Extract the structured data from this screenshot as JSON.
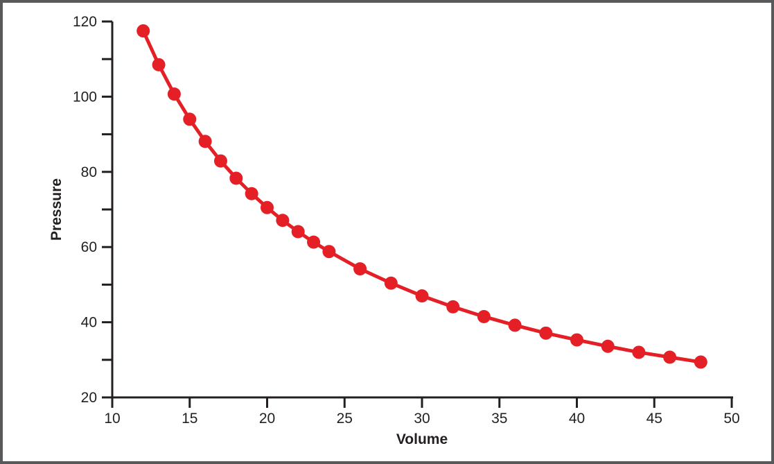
{
  "figure": {
    "background_color": "#ffffff",
    "frame_color": "#58595b",
    "axis_color": "#231f20",
    "text_color": "#231f20"
  },
  "chart_data": {
    "type": "line",
    "title": "",
    "xlabel": "Volume",
    "ylabel": "Pressure",
    "xlim": [
      10,
      50
    ],
    "ylim": [
      20,
      120
    ],
    "x_ticks": [
      10,
      15,
      20,
      25,
      30,
      35,
      40,
      45,
      50
    ],
    "y_major_ticks": [
      20,
      40,
      60,
      80,
      100,
      120
    ],
    "y_minor_ticks": [
      30,
      50,
      70,
      90,
      110
    ],
    "grid": false,
    "legend": "none",
    "line_color": "#e41f26",
    "marker": "filled-circle",
    "series": [
      {
        "name": "pressure-vs-volume",
        "x": [
          12,
          13,
          14,
          15,
          16,
          17,
          18,
          19,
          20,
          21,
          22,
          23,
          24,
          26,
          28,
          30,
          32,
          34,
          36,
          38,
          40,
          42,
          44,
          46,
          48
        ],
        "y": [
          117.5,
          108.5,
          100.7,
          94.0,
          88.1,
          82.9,
          78.3,
          74.2,
          70.5,
          67.1,
          64.1,
          61.3,
          58.8,
          54.2,
          50.4,
          47.0,
          44.1,
          41.5,
          39.2,
          37.1,
          35.3,
          33.6,
          32.0,
          30.7,
          29.4
        ]
      }
    ]
  }
}
